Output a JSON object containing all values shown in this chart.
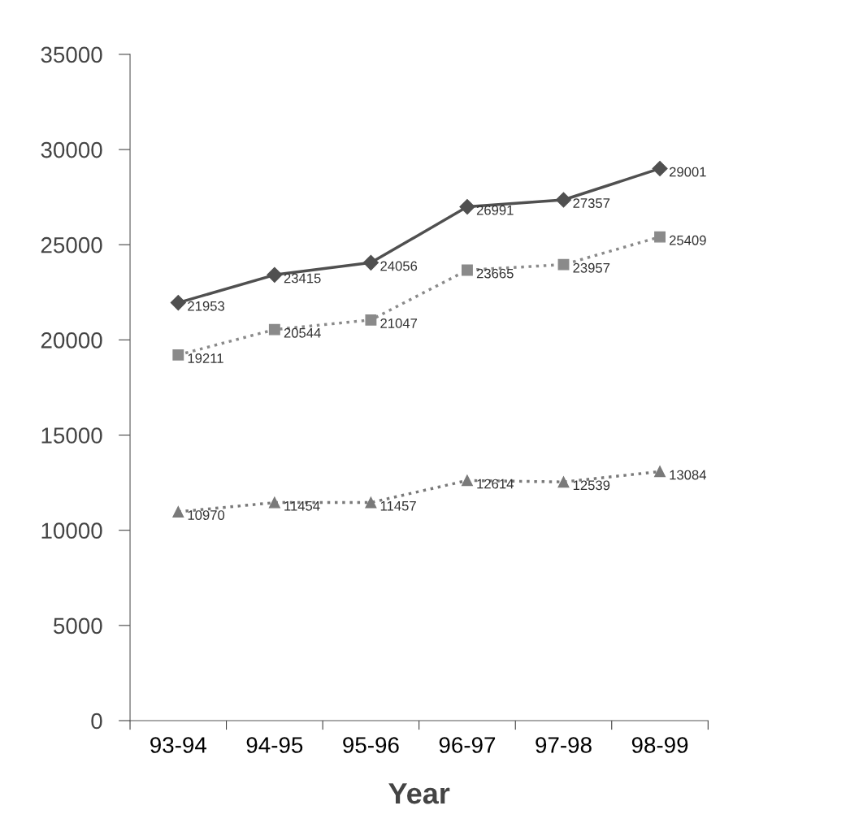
{
  "chart_data": {
    "type": "line",
    "xlabel": "Year",
    "categories": [
      "93-94",
      "94-95",
      "95-96",
      "96-97",
      "97-98",
      "98-99"
    ],
    "series": [
      {
        "color": "#505050",
        "marker": "diamond",
        "line_style": "solid",
        "values": [
          21953,
          23415,
          24056,
          26991,
          27357,
          29001
        ]
      },
      {
        "color": "#8a8a8a",
        "marker": "square",
        "line_style": "dotted",
        "values": [
          19211,
          20544,
          21047,
          23665,
          23957,
          25409
        ]
      },
      {
        "color": "#7a7a7a",
        "marker": "triangle",
        "line_style": "dotted",
        "values": [
          10970,
          11454,
          11457,
          12614,
          12539,
          13084
        ]
      }
    ],
    "ylim": [
      0,
      35000
    ],
    "yticks": [
      0,
      5000,
      10000,
      15000,
      20000,
      25000,
      30000,
      35000
    ],
    "grid": false,
    "legend": false,
    "data_labels": true
  }
}
